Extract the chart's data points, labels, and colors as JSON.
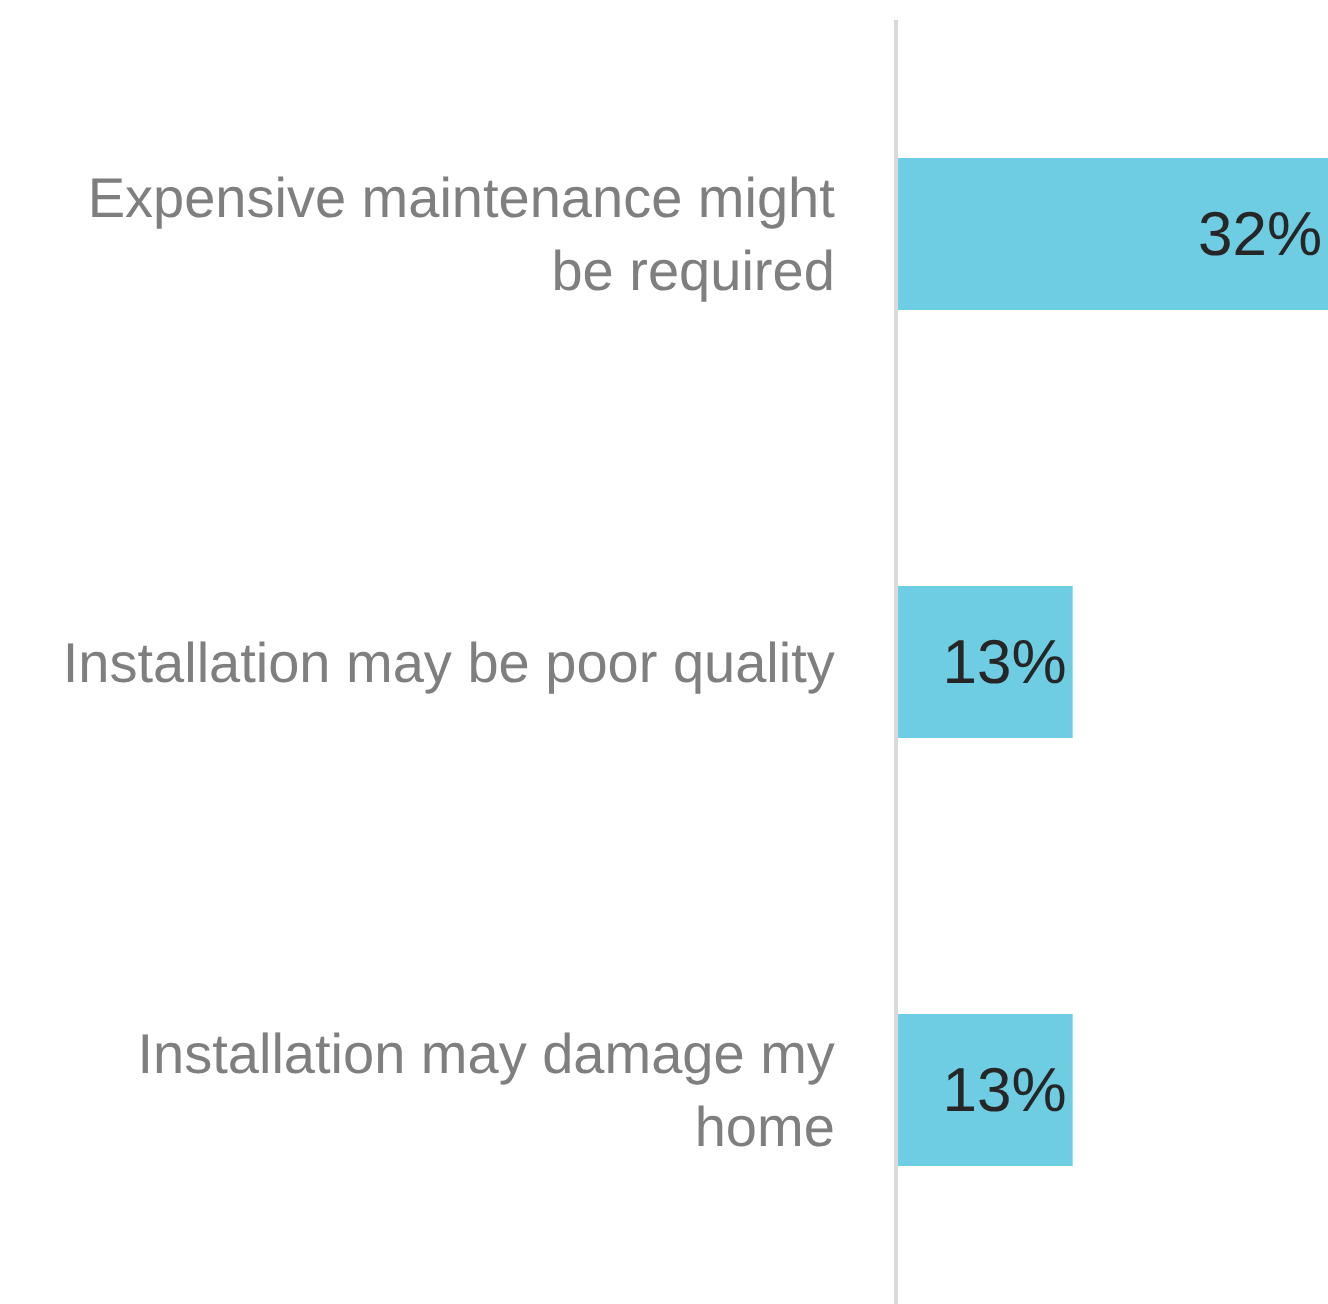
{
  "chart_data": {
    "type": "bar",
    "orientation": "horizontal",
    "categories": [
      "Expensive maintenance might be required",
      "Installation may be poor quality",
      "Installation may damage my home"
    ],
    "values": [
      32,
      13,
      13
    ],
    "value_labels": [
      "32%",
      "13%",
      "13%"
    ],
    "color": "#6fcde3"
  }
}
